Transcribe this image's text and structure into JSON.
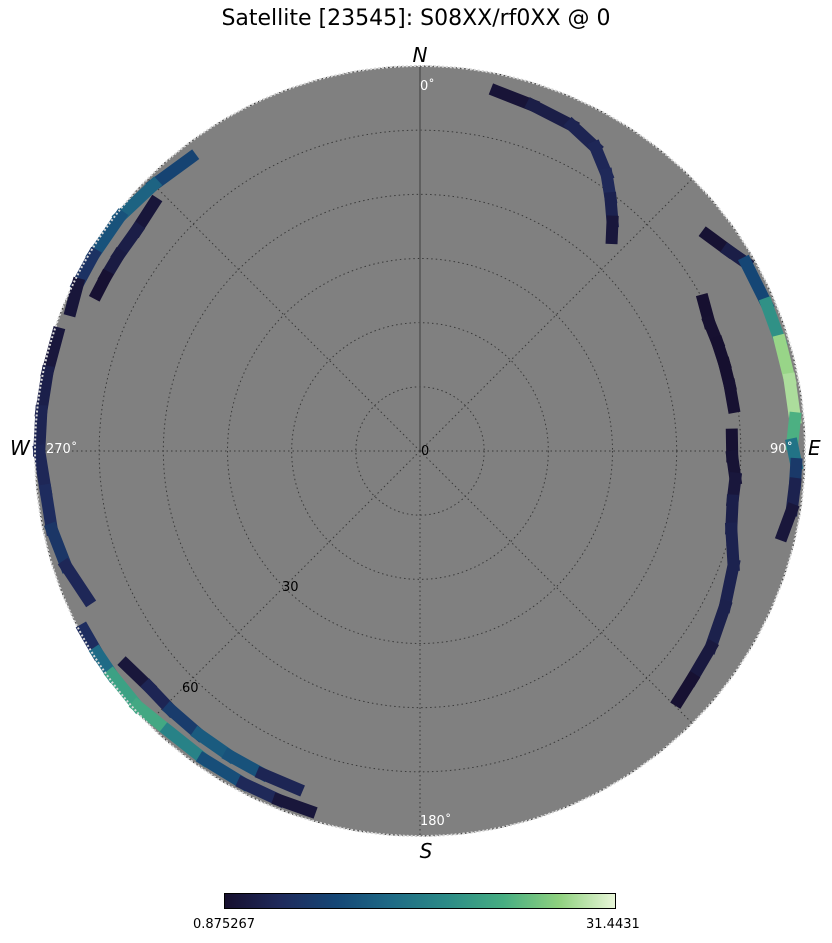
{
  "title": "Satellite [23545]: S08XX/rf0XX @ 0",
  "colors": {
    "sky_fill": "#808080",
    "grid": "#3a3a3a",
    "colormap": [
      "#160f2e",
      "#1f2a5c",
      "#154776",
      "#1f6b86",
      "#2c8c87",
      "#47ae82",
      "#8fd17f",
      "#e8f6d8"
    ]
  },
  "compass": {
    "north": "N",
    "east": "E",
    "south": "S",
    "west": "W"
  },
  "azimuth_labels": {
    "a0": "0˚",
    "a90": "90˚",
    "a180": "180˚",
    "a270": "270˚"
  },
  "radial_labels": {
    "r0": "0",
    "r30": "30",
    "r60": "60"
  },
  "colorbar": {
    "min_label": "0.875267",
    "max_label": "31.4431"
  },
  "chart_data": {
    "type": "polar-skyplot",
    "title": "Satellite [23545]: S08XX/rf0XX @ 0",
    "angular_axis": {
      "zero_direction": "N",
      "direction": "clockwise",
      "tick_step_deg": 45,
      "labels": [
        "0˚",
        "90˚",
        "180˚",
        "270˚"
      ]
    },
    "radial_axis": {
      "label_ticks": [
        0,
        30,
        60
      ],
      "ring_count": 6,
      "max_value": 90
    },
    "colorbar": {
      "vmin": 0.875267,
      "vmax": 31.4431,
      "colormap": "cubehelix-like dark blue to light green"
    },
    "tracks": [
      {
        "points": [
          [
            12,
            86,
            0.9
          ],
          [
            18,
            85,
            2.5
          ],
          [
            25,
            84,
            4
          ],
          [
            30,
            82,
            4.5
          ],
          [
            34,
            78,
            5
          ],
          [
            37,
            74,
            5
          ],
          [
            40,
            70,
            3
          ],
          [
            42,
            67,
            1.5
          ]
        ]
      },
      {
        "points": [
          [
            53,
            84,
            1.2
          ],
          [
            57,
            86,
            1.5
          ],
          [
            60,
            88,
            5
          ],
          [
            67,
            88,
            14
          ],
          [
            73,
            88,
            24
          ],
          [
            79,
            88,
            31
          ],
          [
            85,
            88,
            26
          ],
          [
            89,
            87,
            20
          ],
          [
            92,
            88,
            10
          ],
          [
            95,
            88,
            5
          ],
          [
            99,
            88,
            3
          ],
          [
            103,
            87,
            1.2
          ]
        ]
      },
      {
        "points": [
          [
            62,
            75,
            1
          ],
          [
            66,
            74,
            1.2
          ],
          [
            70,
            74,
            1.2
          ],
          [
            74,
            74,
            1
          ],
          [
            78,
            74,
            1
          ],
          [
            82,
            74,
            1.5
          ]
        ]
      },
      {
        "points": [
          [
            87,
            73,
            1
          ],
          [
            91,
            73,
            1.5
          ],
          [
            95,
            74,
            1.5
          ],
          [
            99,
            74,
            3
          ],
          [
            104,
            75,
            4
          ],
          [
            110,
            78,
            4
          ],
          [
            117,
            80,
            4
          ],
          [
            124,
            82,
            3.5
          ],
          [
            130,
            83,
            1.5
          ],
          [
            134,
            84,
            1
          ]
        ]
      },
      {
        "points": [
          [
            288,
            89,
            1.5
          ],
          [
            282,
            89,
            3
          ],
          [
            276,
            89,
            4
          ],
          [
            270,
            89,
            4.5
          ],
          [
            264,
            88,
            5
          ],
          [
            258,
            88,
            6
          ],
          [
            252,
            87,
            8
          ],
          [
            246,
            85,
            1.5
          ]
        ]
      },
      {
        "points": [
          [
            322,
            87,
            4
          ],
          [
            315,
            88,
            14
          ],
          [
            308,
            89,
            12
          ],
          [
            301,
            89,
            10
          ],
          [
            296,
            89,
            3
          ],
          [
            292,
            88,
            1
          ]
        ]
      },
      {
        "points": [
          [
            313,
            85,
            1.5
          ],
          [
            308,
            84,
            2.5
          ],
          [
            303,
            84,
            4
          ],
          [
            299,
            84,
            1.5
          ],
          [
            296,
            84,
            1
          ]
        ]
      },
      {
        "points": [
          [
            242,
            89,
            1.5
          ],
          [
            238,
            89,
            10
          ],
          [
            234,
            89,
            18
          ],
          [
            228,
            89,
            24
          ],
          [
            222,
            88,
            20
          ],
          [
            215,
            88,
            14
          ],
          [
            208,
            88,
            7
          ],
          [
            202,
            88,
            3
          ],
          [
            197,
            88,
            1.2
          ]
        ]
      },
      {
        "points": [
          [
            234,
            85,
            1.2
          ],
          [
            229,
            84,
            3
          ],
          [
            224,
            84,
            6
          ],
          [
            218,
            84,
            10
          ],
          [
            212,
            84,
            14
          ],
          [
            206,
            84,
            8
          ],
          [
            200,
            84,
            1
          ]
        ]
      }
    ]
  }
}
